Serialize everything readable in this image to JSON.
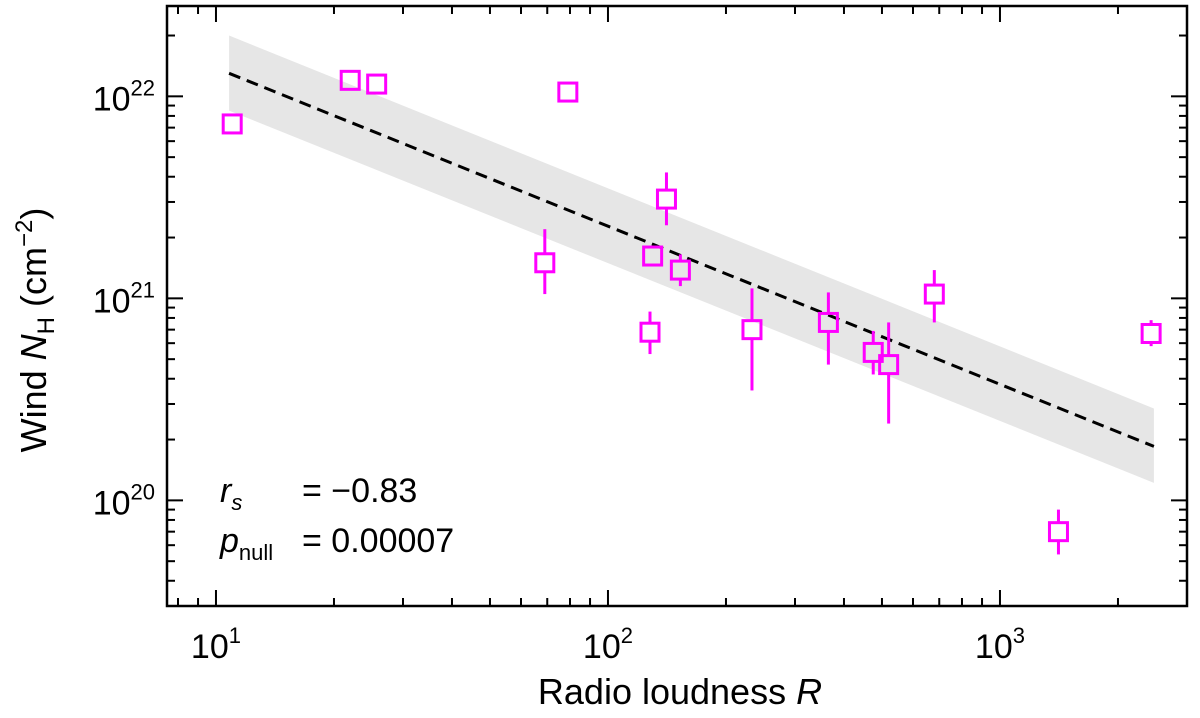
{
  "chart_data": {
    "type": "scatter",
    "xlabel": "Radio loudness",
    "xlabel_var": "R",
    "ylabel_prefix": "Wind",
    "ylabel_var": "N",
    "ylabel_sub": "H",
    "ylabel_unit_open": "(cm",
    "ylabel_unit_sup": "−2",
    "ylabel_unit_close": ")",
    "xscale": "log",
    "yscale": "log",
    "xlim": [
      7.5,
      3000
    ],
    "ylim": [
      3e+19,
      2.8e+22
    ],
    "xticks": [
      {
        "value": 10,
        "base": "10",
        "exp": "1"
      },
      {
        "value": 100,
        "base": "10",
        "exp": "2"
      },
      {
        "value": 1000,
        "base": "10",
        "exp": "3"
      }
    ],
    "yticks": [
      {
        "value": 1e+20,
        "base": "10",
        "exp": "20"
      },
      {
        "value": 1e+21,
        "base": "10",
        "exp": "21"
      },
      {
        "value": 1e+22,
        "base": "10",
        "exp": "22"
      }
    ],
    "points_color": "#ff00ff",
    "points": [
      {
        "x": 11,
        "y": 7.3e+21,
        "ylo": 6.5e+21,
        "yhi": 8.2e+21
      },
      {
        "x": 22,
        "y": 1.2e+22,
        "ylo": 1.1e+22,
        "yhi": 1.3e+22
      },
      {
        "x": 25.7,
        "y": 1.15e+22,
        "ylo": 1.05e+22,
        "yhi": 1.25e+22
      },
      {
        "x": 79,
        "y": 1.05e+22,
        "ylo": 9.5e+21,
        "yhi": 1.15e+22
      },
      {
        "x": 69,
        "y": 1.5e+21,
        "ylo": 1.05e+21,
        "yhi": 2.2e+21
      },
      {
        "x": 128,
        "y": 6.8e+20,
        "ylo": 5.3e+20,
        "yhi": 8.6e+20
      },
      {
        "x": 130,
        "y": 1.62e+21,
        "ylo": 1.45e+21,
        "yhi": 1.8e+21
      },
      {
        "x": 141,
        "y": 3.1e+21,
        "ylo": 2.3e+21,
        "yhi": 4.2e+21
      },
      {
        "x": 153,
        "y": 1.38e+21,
        "ylo": 1.15e+21,
        "yhi": 1.65e+21
      },
      {
        "x": 233,
        "y": 7e+20,
        "ylo": 3.5e+20,
        "yhi": 1.12e+21
      },
      {
        "x": 365,
        "y": 7.6e+20,
        "ylo": 4.7e+20,
        "yhi": 1.07e+21
      },
      {
        "x": 475,
        "y": 5.4e+20,
        "ylo": 4.2e+20,
        "yhi": 6.9e+20
      },
      {
        "x": 520,
        "y": 4.7e+20,
        "ylo": 2.4e+20,
        "yhi": 7.6e+20
      },
      {
        "x": 680,
        "y": 1.05e+21,
        "ylo": 7.6e+20,
        "yhi": 1.38e+21
      },
      {
        "x": 1410,
        "y": 7e+19,
        "ylo": 5.4e+19,
        "yhi": 9e+19
      },
      {
        "x": 2430,
        "y": 6.7e+20,
        "ylo": 5.8e+20,
        "yhi": 7.8e+20
      }
    ],
    "fit": {
      "x_range": [
        10.8,
        2470
      ],
      "y_at_ends": [
        1.3e+22,
        1.85e+20
      ],
      "band_upper_at_ends": [
        2e+22,
        2.85e+20
      ],
      "band_lower_at_ends": [
        8.5e+21,
        1.22e+20
      ],
      "line_style": "dashed",
      "band_color": "#e6e6e6"
    },
    "annotations": {
      "rs_symbol": "r",
      "rs_sub": "s",
      "rs_value": "= −0.83",
      "p_symbol": "p",
      "p_sub": "null",
      "p_value": "= 0.00007"
    },
    "grid": false,
    "legend": "none"
  }
}
